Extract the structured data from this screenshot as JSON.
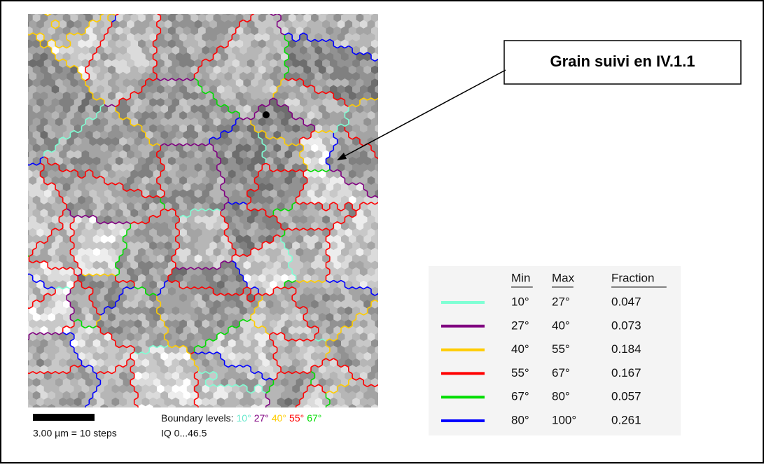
{
  "callout": "Grain suivi en IV.1.1",
  "scale": {
    "bar_label": "3.00 µm = 10 steps",
    "boundary_label": "Boundary levels:",
    "iq_label": "IQ 0...46.5",
    "levels": [
      {
        "text": "10°",
        "color": "#66e8cc"
      },
      {
        "text": "27°",
        "color": "#800080"
      },
      {
        "text": "40°",
        "color": "#ffcc00"
      },
      {
        "text": "55°",
        "color": "#ff0000"
      },
      {
        "text": "67°",
        "color": "#00dd00"
      }
    ]
  },
  "table": {
    "headers": [
      "Min",
      "Max",
      "Fraction"
    ],
    "rows": [
      {
        "color": "#7fffd4",
        "min": "10°",
        "max": "27°",
        "fraction": "0.047"
      },
      {
        "color": "#800080",
        "min": "27°",
        "max": "40°",
        "fraction": "0.073"
      },
      {
        "color": "#ffcc00",
        "min": "40°",
        "max": "55°",
        "fraction": "0.184"
      },
      {
        "color": "#ff0000",
        "min": "55°",
        "max": "67°",
        "fraction": "0.167"
      },
      {
        "color": "#00dd00",
        "min": "67°",
        "max": "80°",
        "fraction": "0.057"
      },
      {
        "color": "#0000ff",
        "min": "80°",
        "max": "100°",
        "fraction": "0.261"
      }
    ]
  }
}
